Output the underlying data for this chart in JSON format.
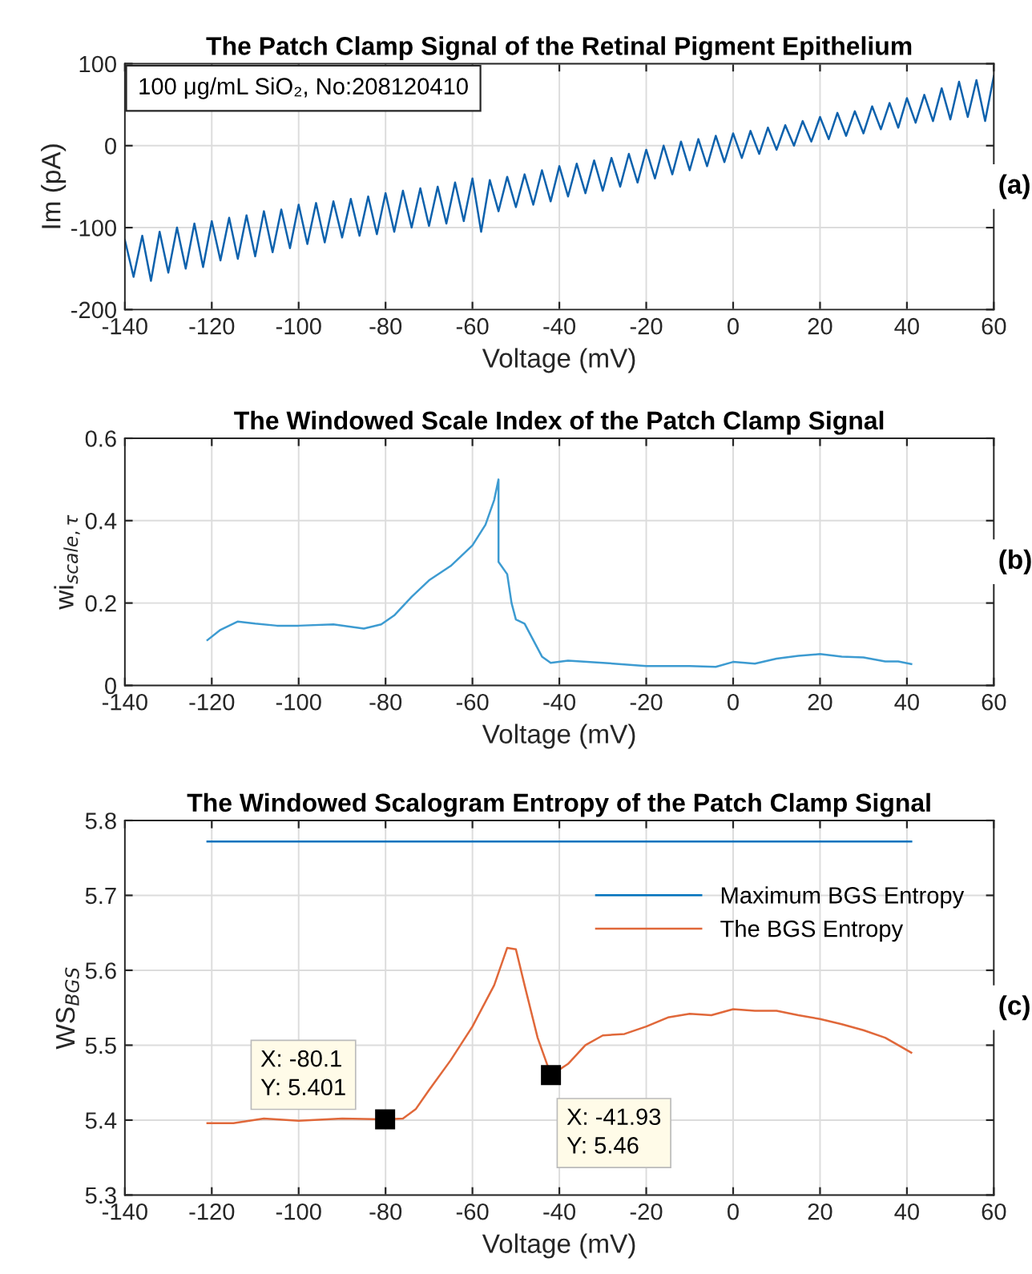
{
  "chart_data": [
    {
      "type": "line",
      "title": "The Patch Clamp Signal of the Retinal Pigment Epithelium",
      "xlabel": "Voltage (mV)",
      "ylabel": "Im (pA)",
      "annotations": [
        "100 μg/mL SiO₂, No:208120410",
        "(a)"
      ],
      "xlim": [
        -140,
        60
      ],
      "xticks": [
        -140,
        -120,
        -100,
        -80,
        -60,
        -40,
        -20,
        0,
        20,
        40,
        60
      ],
      "ylim": [
        -200,
        100
      ],
      "yticks": [
        -200,
        -100,
        0,
        100
      ],
      "grid": true,
      "legend": false,
      "series": [
        {
          "color": "#0e62ad",
          "x": [
            -140,
            -138,
            -136,
            -134,
            -132,
            -130,
            -128,
            -126,
            -124,
            -122,
            -120,
            -118,
            -116,
            -114,
            -112,
            -110,
            -108,
            -106,
            -104,
            -102,
            -100,
            -98,
            -96,
            -94,
            -92,
            -90,
            -88,
            -86,
            -84,
            -82,
            -80,
            -78,
            -76,
            -74,
            -72,
            -70,
            -68,
            -66,
            -64,
            -62,
            -60,
            -58,
            -56,
            -54,
            -52,
            -50,
            -48,
            -46,
            -44,
            -42,
            -40,
            -38,
            -36,
            -34,
            -32,
            -30,
            -28,
            -26,
            -24,
            -22,
            -20,
            -18,
            -16,
            -14,
            -12,
            -10,
            -8,
            -6,
            -4,
            -2,
            0,
            2,
            4,
            6,
            8,
            10,
            12,
            14,
            16,
            18,
            20,
            22,
            24,
            26,
            28,
            30,
            32,
            34,
            36,
            38,
            40,
            42,
            44,
            46,
            48,
            50,
            52,
            54,
            56,
            58,
            60
          ],
          "values": [
            -115,
            -160,
            -110,
            -165,
            -105,
            -155,
            -100,
            -150,
            -95,
            -148,
            -92,
            -140,
            -88,
            -138,
            -85,
            -135,
            -80,
            -130,
            -78,
            -125,
            -72,
            -120,
            -70,
            -118,
            -68,
            -112,
            -65,
            -110,
            -62,
            -108,
            -58,
            -105,
            -55,
            -100,
            -52,
            -98,
            -50,
            -95,
            -45,
            -92,
            -40,
            -105,
            -42,
            -80,
            -38,
            -75,
            -35,
            -72,
            -30,
            -68,
            -25,
            -62,
            -22,
            -58,
            -18,
            -55,
            -15,
            -50,
            -10,
            -45,
            -5,
            -40,
            0,
            -35,
            5,
            -30,
            8,
            -25,
            12,
            -20,
            15,
            -15,
            18,
            -10,
            22,
            -5,
            25,
            0,
            30,
            5,
            35,
            8,
            40,
            12,
            42,
            15,
            48,
            20,
            52,
            22,
            58,
            28,
            62,
            30,
            70,
            32,
            78,
            35,
            80,
            30,
            85
          ]
        }
      ]
    },
    {
      "type": "line",
      "title": "The Windowed Scale Index of the Patch Clamp Signal",
      "xlabel": "Voltage (mV)",
      "ylabel": "wi$_{scale,τ}$",
      "annotations": [
        "(b)"
      ],
      "xlim": [
        -140,
        60
      ],
      "xticks": [
        -140,
        -120,
        -100,
        -80,
        -60,
        -40,
        -20,
        0,
        20,
        40,
        60
      ],
      "ylim": [
        0,
        0.6
      ],
      "yticks": [
        0,
        0.2,
        0.4,
        0.6
      ],
      "grid": true,
      "legend": false,
      "series": [
        {
          "color": "#3d9bd1",
          "x": [
            -121,
            -118,
            -114,
            -110,
            -105,
            -100,
            -92,
            -85,
            -81,
            -78,
            -74,
            -70,
            -65,
            -60,
            -57,
            -55,
            -54,
            -54,
            -52,
            -51,
            -50,
            -48,
            -46,
            -44,
            -42,
            -38,
            -30,
            -20,
            -10,
            -4,
            0,
            5,
            10,
            15,
            20,
            25,
            30,
            35,
            38,
            41
          ],
          "values": [
            0.11,
            0.135,
            0.155,
            0.15,
            0.145,
            0.145,
            0.148,
            0.138,
            0.148,
            0.17,
            0.215,
            0.255,
            0.29,
            0.34,
            0.39,
            0.45,
            0.5,
            0.3,
            0.27,
            0.2,
            0.16,
            0.15,
            0.11,
            0.07,
            0.055,
            0.06,
            0.055,
            0.047,
            0.047,
            0.045,
            0.057,
            0.053,
            0.065,
            0.072,
            0.076,
            0.07,
            0.068,
            0.058,
            0.058,
            0.052
          ]
        }
      ]
    },
    {
      "type": "line",
      "title": "The Windowed Scalogram Entropy of the Patch Clamp Signal",
      "xlabel": "Voltage (mV)",
      "ylabel": "WS$_{BGS}$",
      "xlim": [
        -140,
        60
      ],
      "xticks": [
        -140,
        -120,
        -100,
        -80,
        -60,
        -40,
        -20,
        0,
        20,
        40,
        60
      ],
      "ylim": [
        5.3,
        5.8
      ],
      "yticks": [
        5.3,
        5.4,
        5.5,
        5.6,
        5.7,
        5.8
      ],
      "grid": true,
      "legend": "top right",
      "annotations": [
        {
          "text": "X: -80.1\nY: 5.401",
          "x": -80.1,
          "y": 5.401
        },
        {
          "text": "X: -41.93\nY: 5.46",
          "x": -41.93,
          "y": 5.46
        },
        "(c)"
      ],
      "series": [
        {
          "name": "Maximum BGS Entropy",
          "color": "#0072bd",
          "x": [
            -121,
            41
          ],
          "values": [
            5.772,
            5.772
          ]
        },
        {
          "name": "The BGS Entropy",
          "color": "#e0683a",
          "x": [
            -121,
            -115,
            -108,
            -100,
            -90,
            -80.1,
            -76,
            -73,
            -70,
            -65,
            -60,
            -55,
            -52,
            -50,
            -48,
            -45,
            -41.93,
            -38,
            -34,
            -30,
            -25,
            -20,
            -15,
            -10,
            -5,
            0,
            5,
            10,
            15,
            20,
            25,
            30,
            35,
            38,
            41
          ],
          "values": [
            5.396,
            5.396,
            5.402,
            5.399,
            5.402,
            5.401,
            5.402,
            5.415,
            5.44,
            5.48,
            5.525,
            5.58,
            5.63,
            5.628,
            5.58,
            5.51,
            5.46,
            5.475,
            5.5,
            5.513,
            5.515,
            5.525,
            5.537,
            5.542,
            5.54,
            5.548,
            5.546,
            5.546,
            5.54,
            5.535,
            5.528,
            5.52,
            5.51,
            5.5,
            5.49
          ]
        }
      ]
    }
  ]
}
